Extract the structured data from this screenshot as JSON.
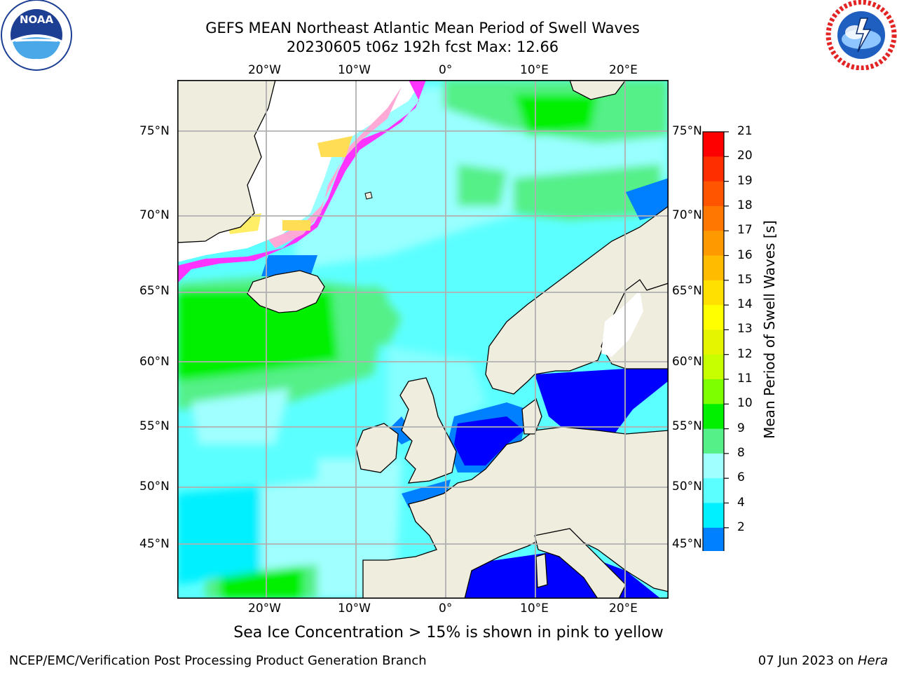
{
  "title": {
    "line1": "GEFS MEAN Northeast Atlantic Mean Period of Swell Waves",
    "line2": "20230605 t06z 192h fcst   Max: 12.66"
  },
  "logos": {
    "noaa": {
      "text": "NOAA",
      "ring": "NATIONAL OCEANIC AND ATMOSPHERIC ADMINISTRATION · U.S. DEPARTMENT OF COMMERCE"
    },
    "nws": {
      "ring": "NATIONAL WEATHER SERVICE"
    }
  },
  "map": {
    "lon_labels": [
      "20°W",
      "10°W",
      "0°",
      "10°E",
      "20°E"
    ],
    "lat_labels": [
      "75°N",
      "70°N",
      "65°N",
      "60°N",
      "55°N",
      "50°N",
      "45°N"
    ]
  },
  "colorbar": {
    "label": "Mean Period of Swell Waves [s]",
    "ticks": [
      "21",
      "20",
      "19",
      "18",
      "17",
      "16",
      "15",
      "14",
      "13",
      "12",
      "11",
      "10",
      "9",
      "8",
      "6",
      "4",
      "2"
    ],
    "colors": [
      "#ff0000",
      "#ff2e00",
      "#ff5500",
      "#ff7700",
      "#ff9900",
      "#ffbb00",
      "#ffe000",
      "#ffff00",
      "#e5f500",
      "#c8ff00",
      "#7dff00",
      "#00f000",
      "#55f088",
      "#a0ffff",
      "#5cffff",
      "#00f0ff",
      "#007fff"
    ],
    "extend_color": "#0000ff"
  },
  "caption": "Sea Ice Concentration > 15% is shown in pink to yellow",
  "footer": {
    "left": "NCEP/EMC/Verification Post Processing Product Generation Branch",
    "right_date": "07 Jun 2023 on ",
    "right_host": "Hera"
  }
}
